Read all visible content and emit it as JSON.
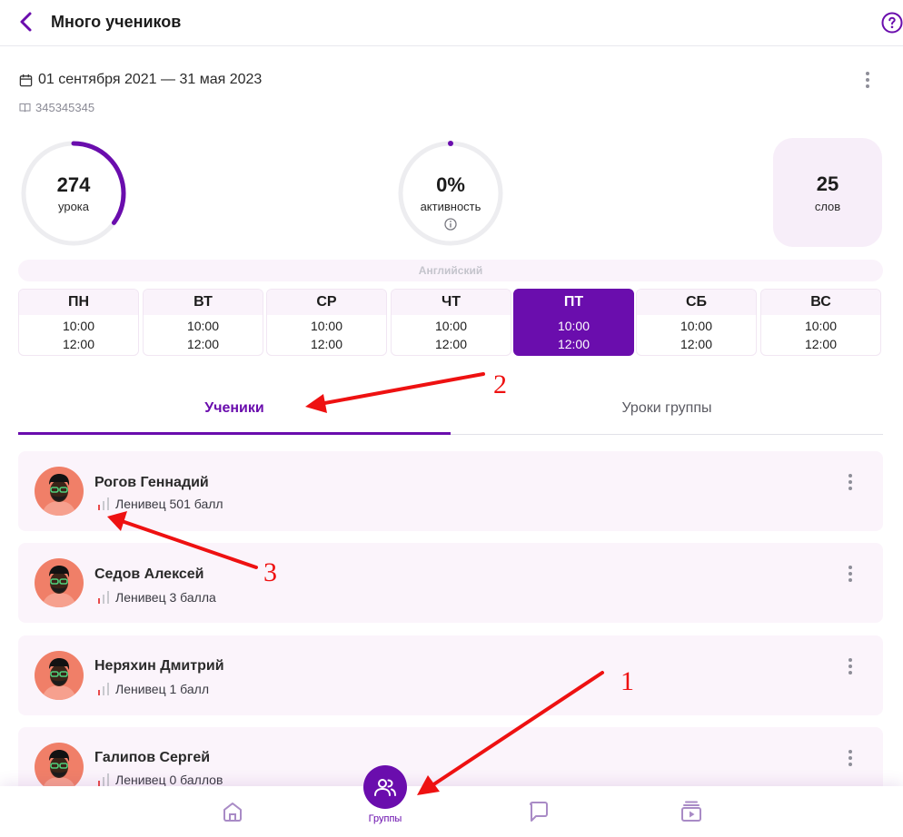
{
  "header": {
    "title": "Много учеников"
  },
  "info": {
    "date_range": "01 сентября 2021 — 31 мая 2023",
    "code": "345345345"
  },
  "stats": {
    "lessons": {
      "value": "274",
      "label": "урока",
      "progress": 0.35
    },
    "activity": {
      "value": "0%",
      "label": "активность",
      "progress": 0
    },
    "words": {
      "value": "25",
      "label": "слов"
    }
  },
  "schedule": {
    "language": "Английский",
    "days": [
      {
        "name": "ПН",
        "time1": "10:00",
        "time2": "12:00",
        "active": false
      },
      {
        "name": "ВТ",
        "time1": "10:00",
        "time2": "12:00",
        "active": false
      },
      {
        "name": "СР",
        "time1": "10:00",
        "time2": "12:00",
        "active": false
      },
      {
        "name": "ЧТ",
        "time1": "10:00",
        "time2": "12:00",
        "active": false
      },
      {
        "name": "ПТ",
        "time1": "10:00",
        "time2": "12:00",
        "active": true
      },
      {
        "name": "СБ",
        "time1": "10:00",
        "time2": "12:00",
        "active": false
      },
      {
        "name": "ВС",
        "time1": "10:00",
        "time2": "12:00",
        "active": false
      }
    ]
  },
  "tabs": [
    {
      "label": "Ученики",
      "active": true
    },
    {
      "label": "Уроки группы",
      "active": false
    }
  ],
  "students": [
    {
      "name": "Рогов Геннадий",
      "rating": "Ленивец 501 балл"
    },
    {
      "name": "Седов Алексей",
      "rating": "Ленивец 3 балла"
    },
    {
      "name": "Неряхин Дмитрий",
      "rating": "Ленивец 1 балл"
    },
    {
      "name": "Галипов Сергей",
      "rating": "Ленивец 0 баллов"
    }
  ],
  "bottom_nav": {
    "items": [
      "home-icon",
      "groups-icon",
      "chat-icon",
      "lessons-icon"
    ],
    "active_label": "Группы"
  },
  "annotations": [
    "1",
    "2",
    "3"
  ],
  "colors": {
    "accent": "#6a0dad",
    "card_bg": "#fbf4fb",
    "annotation": "#ee1111"
  }
}
